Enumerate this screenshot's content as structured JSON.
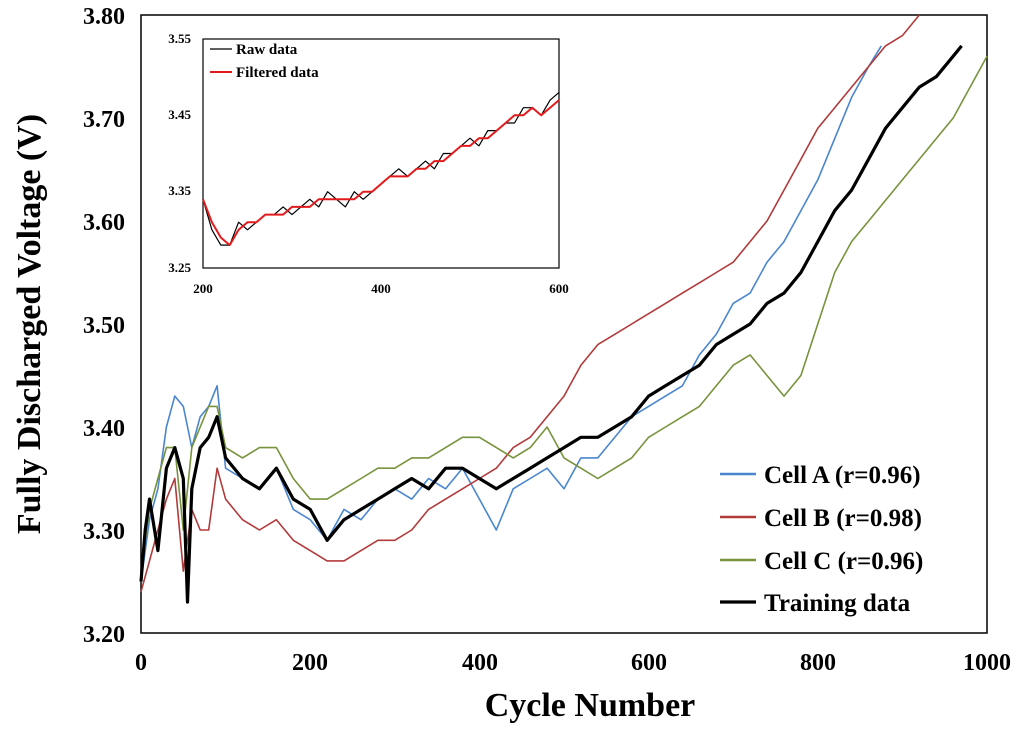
{
  "chart_data": [
    {
      "type": "line",
      "xlabel": "Cycle Number",
      "ylabel": "Fully Discharged Voltage (V)",
      "xlim": [
        0,
        1000
      ],
      "ylim": [
        3.2,
        3.8
      ],
      "xticks": [
        "0",
        "200",
        "400",
        "600",
        "800",
        "1000"
      ],
      "yticks": [
        "3.20",
        "3.30",
        "3.40",
        "3.50",
        "3.60",
        "3.70",
        "3.80"
      ],
      "legend_position": "bottom-right",
      "series": [
        {
          "name": "Cell A (r=0.96)",
          "color": "#4a86cf",
          "width": 1.6,
          "x": [
            0,
            10,
            20,
            30,
            40,
            50,
            60,
            70,
            80,
            90,
            100,
            120,
            140,
            160,
            180,
            200,
            220,
            240,
            260,
            280,
            300,
            320,
            340,
            360,
            380,
            400,
            420,
            440,
            460,
            480,
            500,
            520,
            540,
            560,
            580,
            600,
            620,
            640,
            660,
            680,
            700,
            720,
            740,
            760,
            780,
            800,
            820,
            840,
            860,
            875
          ],
          "y": [
            3.25,
            3.31,
            3.34,
            3.4,
            3.43,
            3.42,
            3.38,
            3.41,
            3.42,
            3.44,
            3.36,
            3.35,
            3.34,
            3.36,
            3.32,
            3.31,
            3.29,
            3.32,
            3.31,
            3.33,
            3.34,
            3.33,
            3.35,
            3.34,
            3.36,
            3.33,
            3.3,
            3.34,
            3.35,
            3.36,
            3.34,
            3.37,
            3.37,
            3.39,
            3.41,
            3.42,
            3.43,
            3.44,
            3.47,
            3.49,
            3.52,
            3.53,
            3.56,
            3.58,
            3.61,
            3.64,
            3.68,
            3.72,
            3.75,
            3.77
          ]
        },
        {
          "name": "Cell B (r=0.98)",
          "color": "#b23a3a",
          "width": 1.6,
          "x": [
            0,
            10,
            20,
            30,
            40,
            50,
            60,
            70,
            80,
            90,
            100,
            120,
            140,
            160,
            180,
            200,
            220,
            240,
            260,
            280,
            300,
            320,
            340,
            360,
            380,
            400,
            420,
            440,
            460,
            480,
            500,
            520,
            540,
            560,
            580,
            600,
            620,
            640,
            660,
            680,
            700,
            720,
            740,
            760,
            780,
            800,
            820,
            840,
            860,
            880,
            900,
            920
          ],
          "y": [
            3.24,
            3.27,
            3.3,
            3.33,
            3.35,
            3.26,
            3.32,
            3.3,
            3.3,
            3.36,
            3.33,
            3.31,
            3.3,
            3.31,
            3.29,
            3.28,
            3.27,
            3.27,
            3.28,
            3.29,
            3.29,
            3.3,
            3.32,
            3.33,
            3.34,
            3.35,
            3.36,
            3.38,
            3.39,
            3.41,
            3.43,
            3.46,
            3.48,
            3.49,
            3.5,
            3.51,
            3.52,
            3.53,
            3.54,
            3.55,
            3.56,
            3.58,
            3.6,
            3.63,
            3.66,
            3.69,
            3.71,
            3.73,
            3.75,
            3.77,
            3.78,
            3.8
          ]
        },
        {
          "name": "Cell C (r=0.96)",
          "color": "#77933c",
          "width": 1.6,
          "x": [
            0,
            10,
            20,
            30,
            40,
            50,
            60,
            70,
            80,
            90,
            100,
            120,
            140,
            160,
            180,
            200,
            220,
            240,
            260,
            280,
            300,
            320,
            340,
            360,
            380,
            400,
            420,
            440,
            460,
            480,
            500,
            520,
            540,
            560,
            580,
            600,
            620,
            640,
            660,
            680,
            700,
            720,
            740,
            760,
            780,
            800,
            820,
            840,
            860,
            880,
            900,
            920,
            940,
            960,
            980,
            1000
          ],
          "y": [
            3.26,
            3.32,
            3.35,
            3.38,
            3.38,
            3.3,
            3.38,
            3.4,
            3.42,
            3.42,
            3.38,
            3.37,
            3.38,
            3.38,
            3.35,
            3.33,
            3.33,
            3.34,
            3.35,
            3.36,
            3.36,
            3.37,
            3.37,
            3.38,
            3.39,
            3.39,
            3.38,
            3.37,
            3.38,
            3.4,
            3.37,
            3.36,
            3.35,
            3.36,
            3.37,
            3.39,
            3.4,
            3.41,
            3.42,
            3.44,
            3.46,
            3.47,
            3.45,
            3.43,
            3.45,
            3.5,
            3.55,
            3.58,
            3.6,
            3.62,
            3.64,
            3.66,
            3.68,
            3.7,
            3.73,
            3.76
          ]
        },
        {
          "name": "Training data",
          "color": "#000000",
          "width": 3.2,
          "x": [
            0,
            5,
            10,
            20,
            30,
            40,
            50,
            55,
            60,
            70,
            80,
            90,
            100,
            120,
            140,
            160,
            180,
            200,
            220,
            240,
            260,
            280,
            300,
            320,
            340,
            360,
            380,
            400,
            420,
            440,
            460,
            480,
            500,
            520,
            540,
            560,
            580,
            600,
            620,
            640,
            660,
            680,
            700,
            720,
            740,
            760,
            780,
            800,
            820,
            840,
            860,
            880,
            900,
            920,
            940,
            960,
            970
          ],
          "y": [
            3.25,
            3.3,
            3.33,
            3.28,
            3.36,
            3.38,
            3.35,
            3.23,
            3.34,
            3.38,
            3.39,
            3.41,
            3.37,
            3.35,
            3.34,
            3.36,
            3.33,
            3.32,
            3.29,
            3.31,
            3.32,
            3.33,
            3.34,
            3.35,
            3.34,
            3.36,
            3.36,
            3.35,
            3.34,
            3.35,
            3.36,
            3.37,
            3.38,
            3.39,
            3.39,
            3.4,
            3.41,
            3.43,
            3.44,
            3.45,
            3.46,
            3.48,
            3.49,
            3.5,
            3.52,
            3.53,
            3.55,
            3.58,
            3.61,
            3.63,
            3.66,
            3.69,
            3.71,
            3.73,
            3.74,
            3.76,
            3.77
          ]
        }
      ]
    },
    {
      "type": "line",
      "inset": true,
      "position": "top-left",
      "xlim": [
        200,
        600
      ],
      "ylim": [
        3.25,
        3.55
      ],
      "xticks": [
        "200",
        "400",
        "600"
      ],
      "yticks": [
        "3.25",
        "3.35",
        "3.45",
        "3.55"
      ],
      "legend_position": "top-left",
      "series": [
        {
          "name": "Raw data",
          "color": "#000000",
          "width": 1.2,
          "x": [
            200,
            210,
            220,
            230,
            240,
            250,
            260,
            270,
            280,
            290,
            300,
            310,
            320,
            330,
            340,
            350,
            360,
            370,
            380,
            390,
            400,
            410,
            420,
            430,
            440,
            450,
            460,
            470,
            480,
            490,
            500,
            510,
            520,
            530,
            540,
            550,
            560,
            570,
            580,
            590,
            600
          ],
          "y": [
            3.34,
            3.3,
            3.28,
            3.28,
            3.31,
            3.3,
            3.31,
            3.32,
            3.32,
            3.33,
            3.32,
            3.33,
            3.34,
            3.33,
            3.35,
            3.34,
            3.33,
            3.35,
            3.34,
            3.35,
            3.36,
            3.37,
            3.38,
            3.37,
            3.38,
            3.39,
            3.38,
            3.4,
            3.4,
            3.41,
            3.42,
            3.41,
            3.43,
            3.43,
            3.44,
            3.44,
            3.46,
            3.46,
            3.45,
            3.47,
            3.48
          ]
        },
        {
          "name": "Filtered data",
          "color": "#e31a1c",
          "width": 2.0,
          "x": [
            200,
            210,
            220,
            230,
            240,
            250,
            260,
            270,
            280,
            290,
            300,
            310,
            320,
            330,
            340,
            350,
            360,
            370,
            380,
            390,
            400,
            410,
            420,
            430,
            440,
            450,
            460,
            470,
            480,
            490,
            500,
            510,
            520,
            530,
            540,
            550,
            560,
            570,
            580,
            590,
            600
          ],
          "y": [
            3.34,
            3.31,
            3.29,
            3.28,
            3.3,
            3.31,
            3.31,
            3.32,
            3.32,
            3.32,
            3.33,
            3.33,
            3.33,
            3.34,
            3.34,
            3.34,
            3.34,
            3.34,
            3.35,
            3.35,
            3.36,
            3.37,
            3.37,
            3.37,
            3.38,
            3.38,
            3.39,
            3.39,
            3.4,
            3.41,
            3.41,
            3.42,
            3.42,
            3.43,
            3.44,
            3.45,
            3.45,
            3.46,
            3.45,
            3.46,
            3.47
          ]
        }
      ]
    }
  ]
}
